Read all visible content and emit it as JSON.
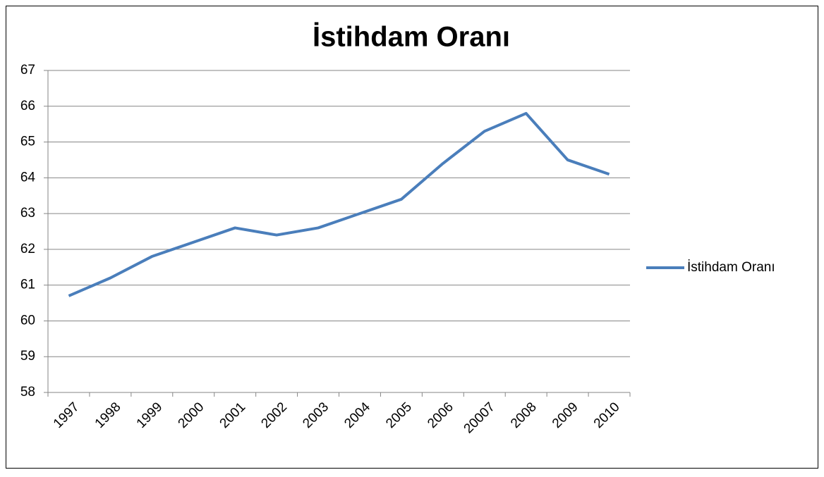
{
  "chart_data": {
    "type": "line",
    "title": "İstihdam Oranı",
    "categories": [
      "1997",
      "1998",
      "1999",
      "2000",
      "2001",
      "2002",
      "2003",
      "2004",
      "2005",
      "2006",
      "20007",
      "2008",
      "2009",
      "2010"
    ],
    "series": [
      {
        "name": "İstihdam Oranı",
        "color": "#4a7ebb",
        "values": [
          60.7,
          61.2,
          61.8,
          62.2,
          62.6,
          62.4,
          62.6,
          63.0,
          63.4,
          64.4,
          65.3,
          65.8,
          64.5,
          64.1
        ]
      }
    ],
    "ylim": [
      58,
      67
    ],
    "yticks": [
      58,
      59,
      60,
      61,
      62,
      63,
      64,
      65,
      66,
      67
    ],
    "grid": true,
    "legend": "right"
  }
}
